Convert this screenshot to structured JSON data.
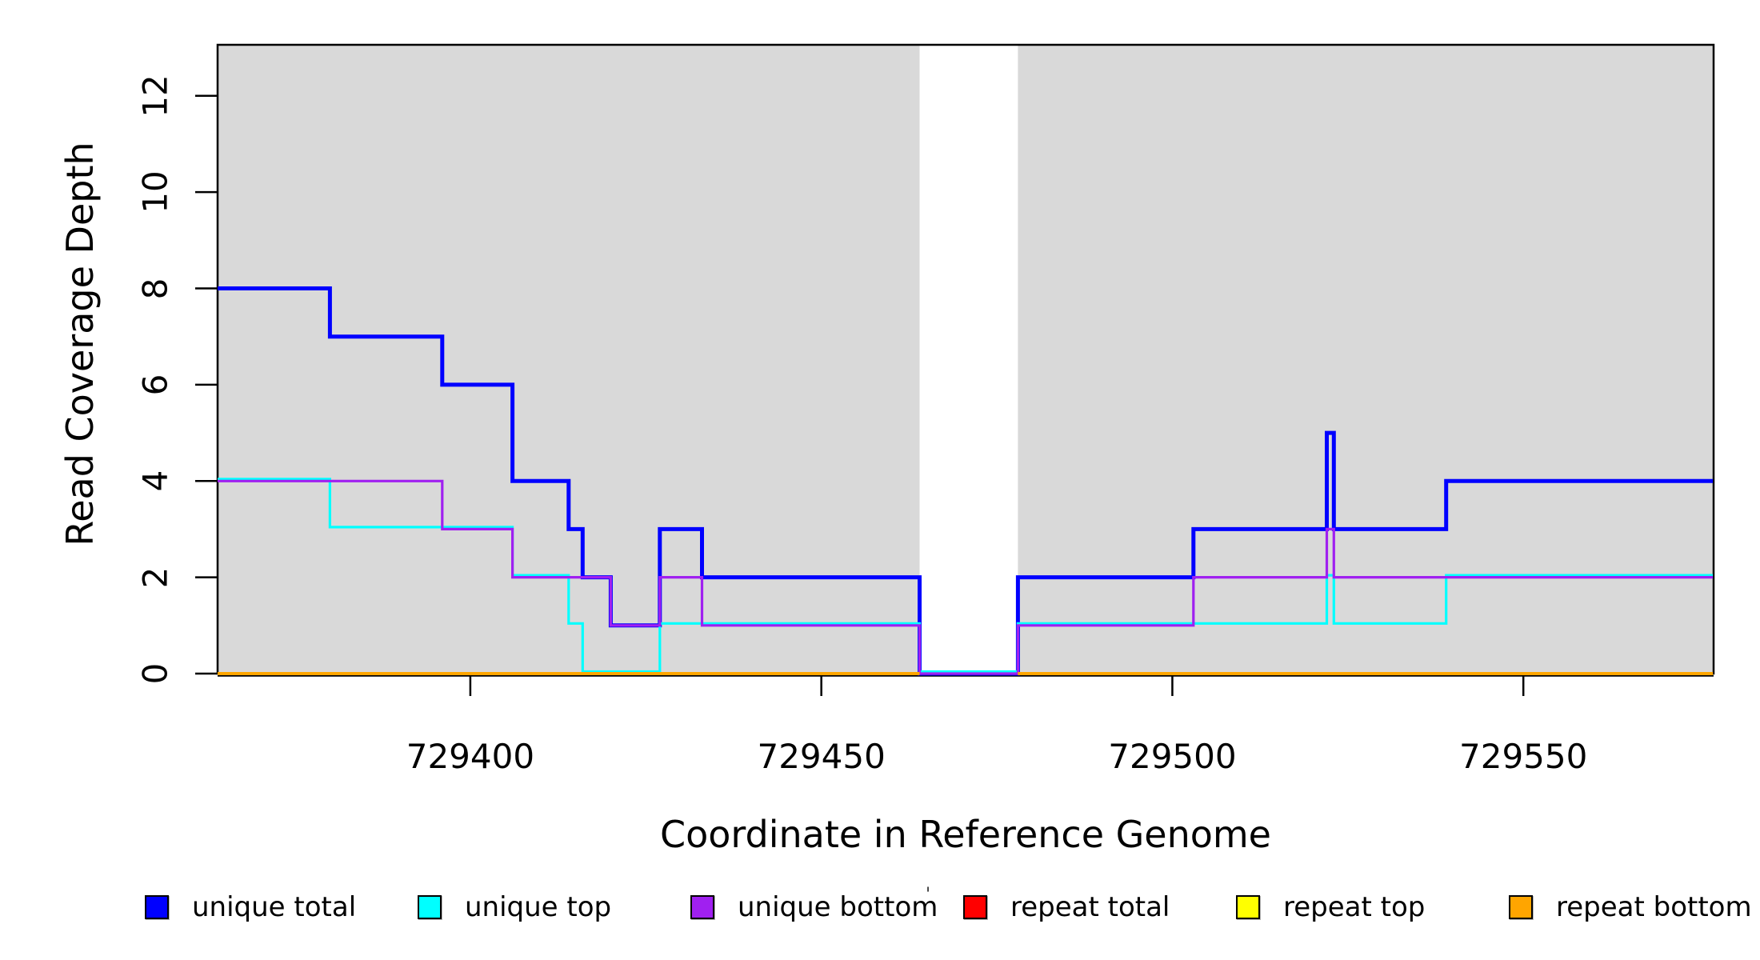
{
  "figure": {
    "xlabel": "Coordinate in Reference Genome",
    "ylabel": "Read Coverage Depth"
  },
  "axes": {
    "x_tick_labels": [
      "729400",
      "729450",
      "729500",
      "729550"
    ],
    "y_tick_labels": [
      "0",
      "2",
      "4",
      "6",
      "8",
      "10",
      "12"
    ]
  },
  "legend": [
    {
      "label": "unique total",
      "color": "#0000FF"
    },
    {
      "label": "unique top",
      "color": "#00FFFF"
    },
    {
      "label": "unique bottom",
      "color": "#A020F0"
    },
    {
      "label": "repeat total",
      "color": "#FF0000"
    },
    {
      "label": "repeat top",
      "color": "#FFFF00"
    },
    {
      "label": "repeat bottom",
      "color": "#FFA500"
    }
  ],
  "misc": {
    "stray_mark": "'"
  },
  "chart_data": {
    "type": "line",
    "style": "step",
    "title": "",
    "xlabel": "Coordinate in Reference Genome",
    "ylabel": "Read Coverage Depth",
    "xlim": [
      729364,
      729577
    ],
    "ylim": [
      0,
      13.06
    ],
    "grid": false,
    "legend_position": "bottom",
    "x_tick_values": [
      729400,
      729450,
      729500,
      729550
    ],
    "y_tick_values": [
      0,
      2,
      4,
      6,
      8,
      10,
      12
    ],
    "plot_background": "#FFFFFF",
    "shaded_regions": [
      {
        "from": 729364,
        "to": 729464,
        "color": "#D9D9D9"
      },
      {
        "from": 729478,
        "to": 729577,
        "color": "#D9D9D9"
      }
    ],
    "gap_region": {
      "from": 729464,
      "to": 729478,
      "note": "white band, repeat series not drawn"
    },
    "series": [
      {
        "name": "unique total",
        "color": "#0000FF",
        "linewidth": 5,
        "runs": [
          [
            [
              729364,
              8
            ],
            [
              729380,
              7
            ],
            [
              729396,
              6
            ],
            [
              729406,
              4
            ],
            [
              729414,
              3
            ],
            [
              729416,
              2
            ],
            [
              729420,
              1
            ],
            [
              729427,
              3
            ],
            [
              729433,
              2
            ],
            [
              729464,
              0
            ],
            [
              729478,
              2
            ],
            [
              729503,
              3
            ],
            [
              729522,
              5
            ],
            [
              729523,
              3
            ],
            [
              729539,
              4
            ],
            [
              729577,
              4
            ]
          ]
        ]
      },
      {
        "name": "unique top",
        "color": "#00FFFF",
        "linewidth": 3.2,
        "runs": [
          [
            [
              729364,
              4
            ],
            [
              729380,
              3
            ],
            [
              729406,
              2
            ],
            [
              729414,
              1
            ],
            [
              729416,
              0
            ],
            [
              729427,
              1
            ],
            [
              729464,
              0
            ],
            [
              729478,
              1
            ],
            [
              729522,
              2
            ],
            [
              729523,
              1
            ],
            [
              729539,
              2
            ],
            [
              729577,
              2
            ]
          ]
        ]
      },
      {
        "name": "unique bottom",
        "color": "#A020F0",
        "linewidth": 3.2,
        "runs": [
          [
            [
              729364,
              4
            ],
            [
              729396,
              3
            ],
            [
              729406,
              2
            ],
            [
              729420,
              1
            ],
            [
              729427,
              2
            ],
            [
              729433,
              1
            ],
            [
              729464,
              0
            ],
            [
              729478,
              1
            ],
            [
              729503,
              2
            ],
            [
              729522,
              3
            ],
            [
              729523,
              2
            ],
            [
              729577,
              2
            ]
          ]
        ]
      },
      {
        "name": "repeat total",
        "color": "#FF0000",
        "linewidth": 3,
        "runs": [
          [
            [
              729364,
              0
            ],
            [
              729464,
              0
            ]
          ],
          [
            [
              729478,
              0
            ],
            [
              729577,
              0
            ]
          ]
        ]
      },
      {
        "name": "repeat top",
        "color": "#FFFF00",
        "linewidth": 3,
        "runs": [
          [
            [
              729364,
              0
            ],
            [
              729464,
              0
            ]
          ],
          [
            [
              729478,
              0
            ],
            [
              729577,
              0
            ]
          ]
        ]
      },
      {
        "name": "repeat bottom",
        "color": "#FFA500",
        "linewidth": 4,
        "runs": [
          [
            [
              729364,
              0
            ],
            [
              729464,
              0
            ]
          ],
          [
            [
              729478,
              0
            ],
            [
              729577,
              0
            ]
          ]
        ]
      }
    ]
  }
}
